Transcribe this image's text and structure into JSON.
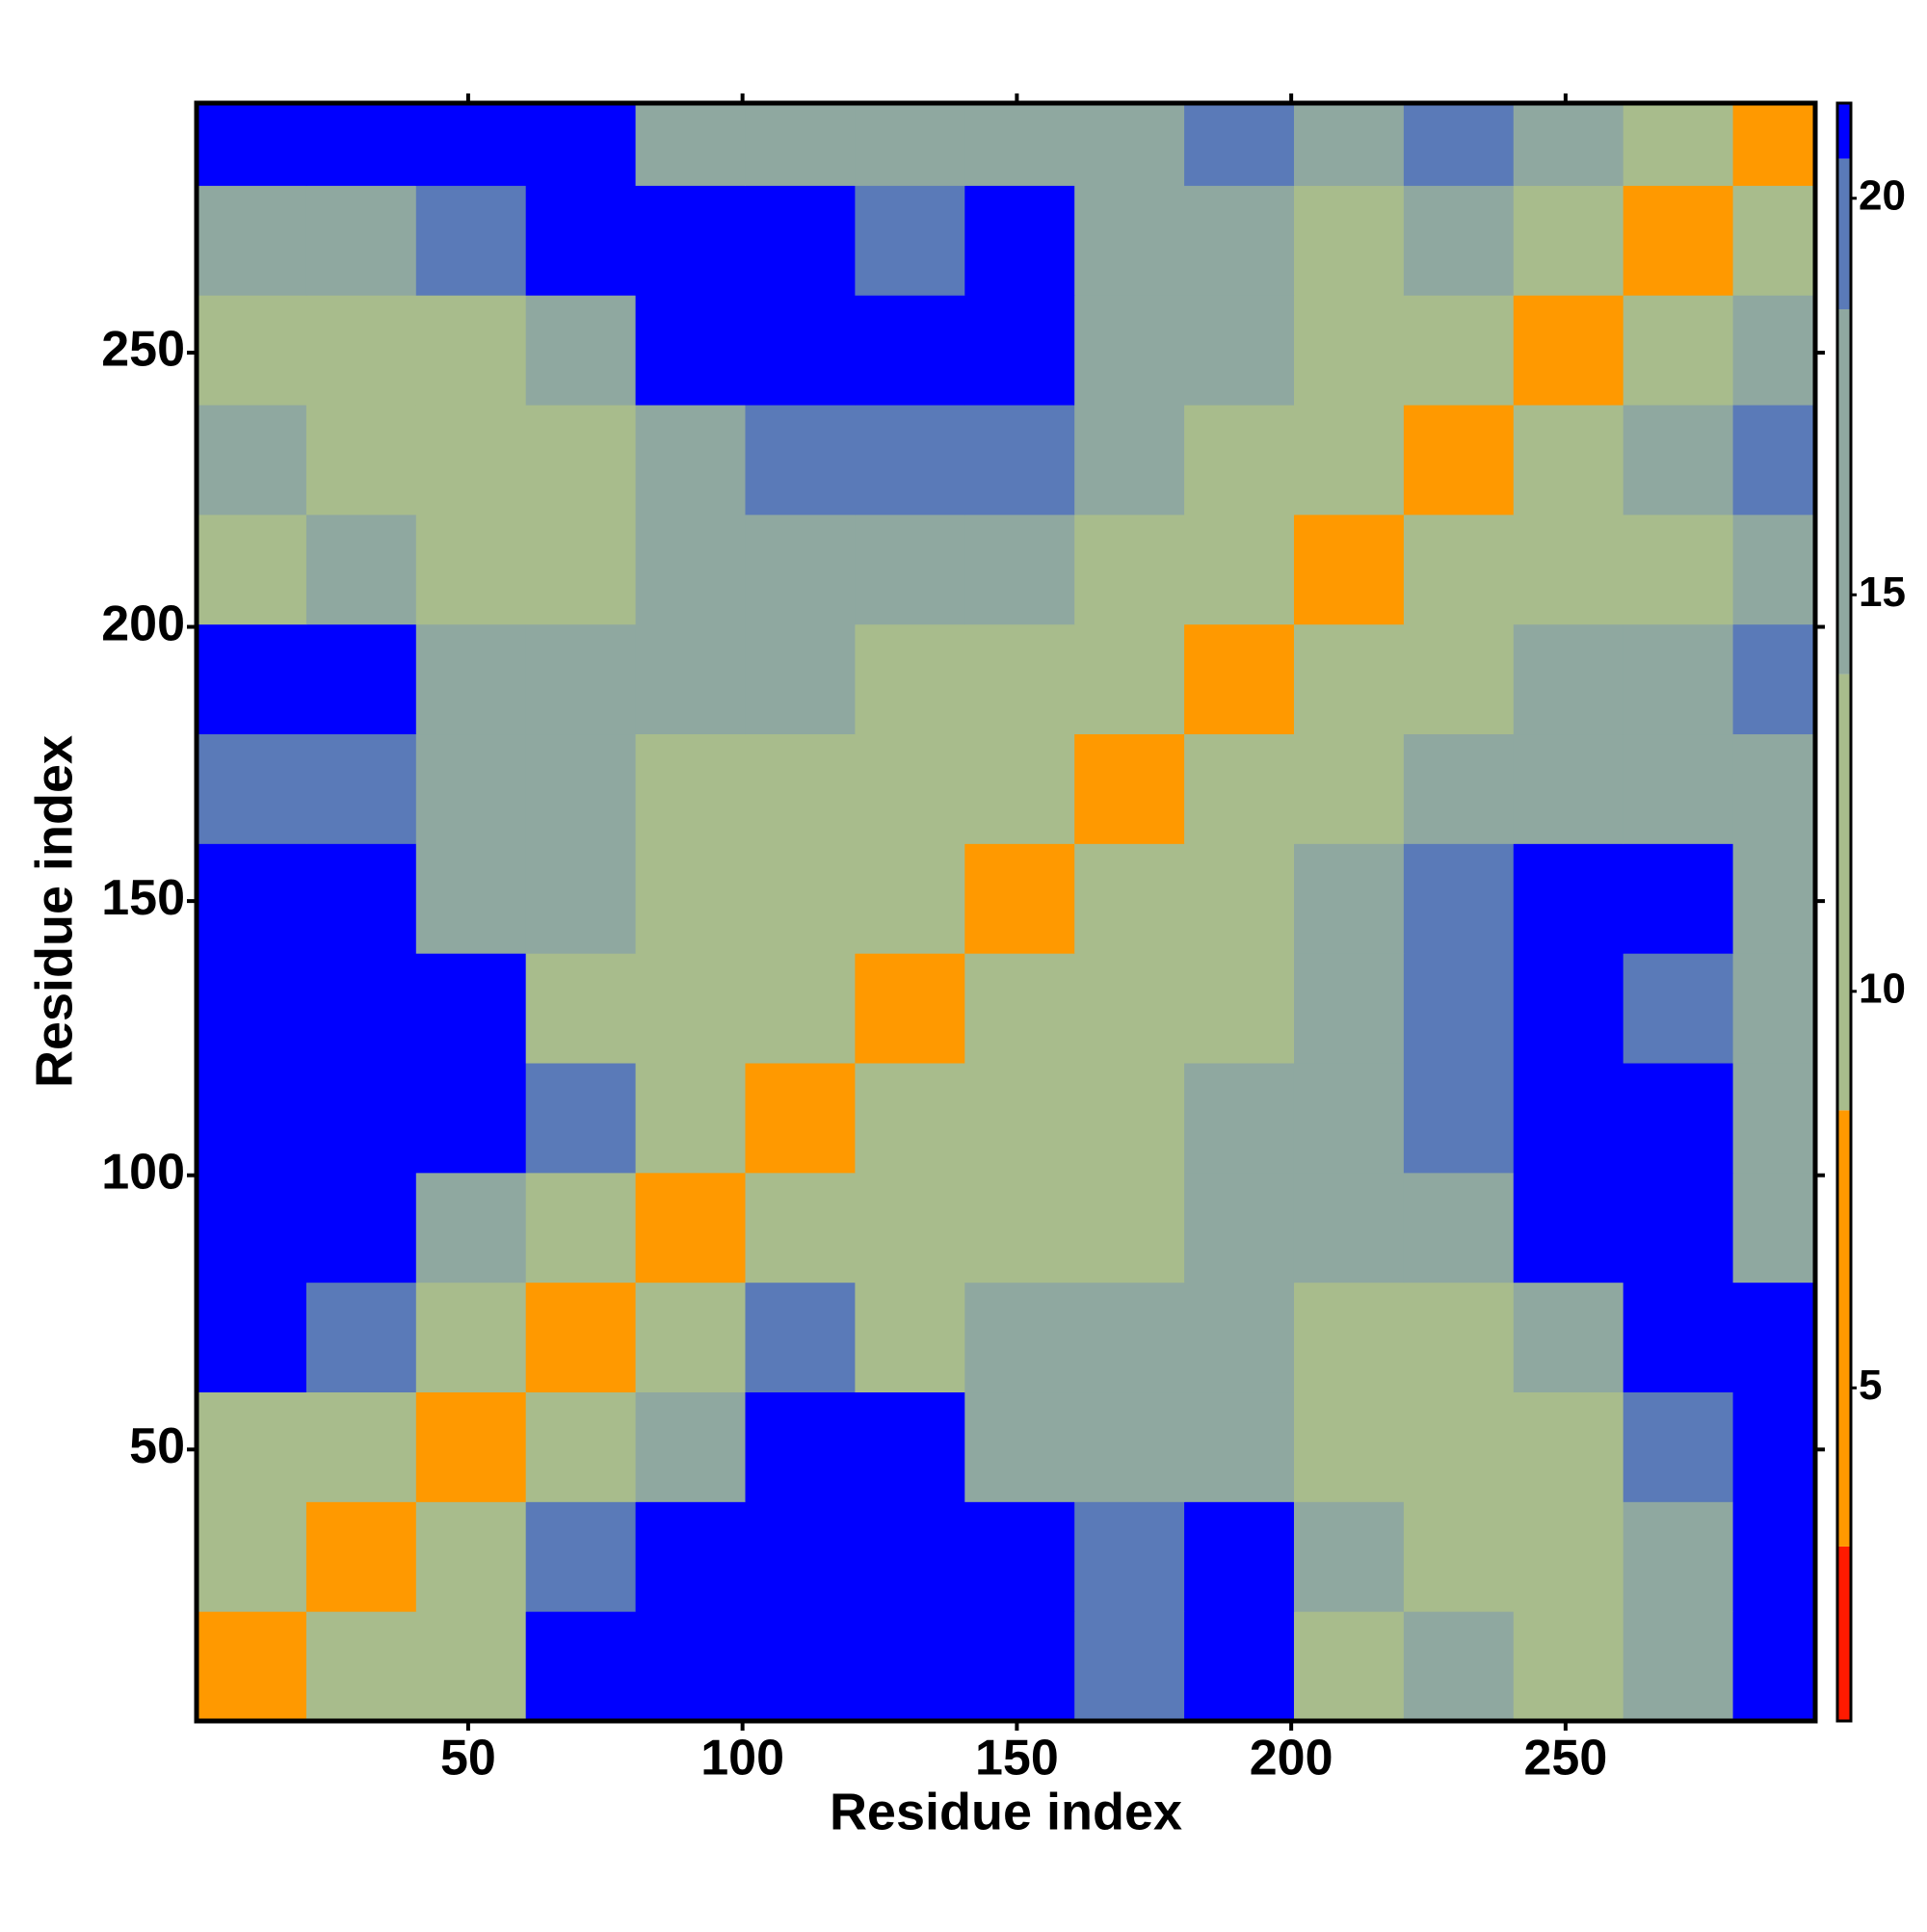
{
  "chart_data": {
    "type": "heatmap",
    "x_label": "Residue index",
    "y_label": "Residue index",
    "bins": [
      0.5,
      20.5,
      40.5,
      60.5,
      80.5,
      100.5,
      120.5,
      140.5,
      160.5,
      180.5,
      200.5,
      220.5,
      240.5,
      260.5,
      280.5,
      295.5
    ],
    "xlim": [
      0.5,
      295.5
    ],
    "ylim": [
      0.5,
      295.5
    ],
    "xticks": [
      50,
      100,
      150,
      200,
      250
    ],
    "yticks": [
      50,
      100,
      150,
      200,
      250
    ],
    "values": [
      [
        5,
        13,
        14,
        21,
        21,
        21,
        21,
        21,
        20,
        21,
        14,
        17,
        12,
        15,
        21
      ],
      [
        13,
        5,
        12,
        19,
        21,
        21,
        21,
        21,
        19,
        21,
        15,
        14,
        11,
        17,
        21
      ],
      [
        14,
        12,
        5,
        13,
        16,
        21,
        21,
        18,
        16,
        16,
        12,
        12,
        14,
        19,
        21
      ],
      [
        21,
        19,
        13,
        5,
        12,
        19,
        14,
        15,
        15,
        17,
        14,
        13,
        16,
        21,
        21
      ],
      [
        21,
        21,
        16,
        12,
        5,
        11,
        12,
        14,
        14,
        17,
        17,
        18,
        21,
        21,
        17
      ],
      [
        21,
        21,
        21,
        19,
        11,
        5,
        12,
        13,
        14,
        16,
        18,
        19,
        21,
        21,
        16
      ],
      [
        21,
        21,
        21,
        14,
        12,
        12,
        5,
        12,
        12,
        13,
        18,
        20,
        21,
        19,
        16
      ],
      [
        21,
        21,
        18,
        15,
        14,
        13,
        12,
        5,
        12,
        13,
        16,
        19,
        21,
        21,
        18
      ],
      [
        20,
        19,
        16,
        15,
        14,
        14,
        12,
        12,
        5,
        11,
        13,
        17,
        18,
        16,
        15
      ],
      [
        21,
        21,
        16,
        17,
        17,
        16,
        13,
        13,
        11,
        5,
        12,
        14,
        17,
        18,
        19
      ],
      [
        14,
        15,
        12,
        14,
        17,
        18,
        18,
        16,
        13,
        12,
        5,
        11,
        13,
        14,
        16
      ],
      [
        17,
        14,
        12,
        13,
        18,
        19,
        20,
        19,
        17,
        14,
        11,
        5,
        12,
        15,
        20
      ],
      [
        12,
        11,
        14,
        16,
        21,
        21,
        21,
        21,
        18,
        17,
        13,
        12,
        5,
        12,
        16
      ],
      [
        15,
        17,
        19,
        21,
        21,
        21,
        19,
        21,
        16,
        18,
        14,
        15,
        12,
        5,
        12
      ],
      [
        21,
        21,
        21,
        21,
        17,
        16,
        16,
        18,
        15,
        19,
        16,
        20,
        16,
        12,
        5
      ]
    ],
    "colorbar": {
      "lim": [
        0.8,
        21.2
      ],
      "ticks": [
        5,
        10,
        15,
        20
      ],
      "stops": [
        {
          "value": 3,
          "color": "#ff1a00"
        },
        {
          "value": 8.5,
          "color": "#ff9900"
        },
        {
          "value": 14,
          "color": "#a8bc8c"
        },
        {
          "value": 18.6,
          "color": "#8fa8a0"
        },
        {
          "value": 20.5,
          "color": "#5a7ab8"
        },
        {
          "value": 21.2,
          "color": "#0000ff"
        }
      ]
    }
  }
}
